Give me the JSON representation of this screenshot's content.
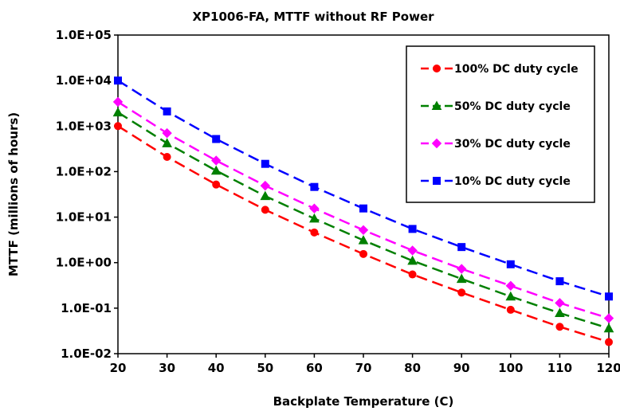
{
  "chart_data": {
    "type": "line",
    "title": "XP1006-FA, MTTF without RF Power",
    "xlabel": "Backplate Temperature (C)",
    "ylabel": "MTTF (millions of hours)",
    "xlim": [
      20,
      120
    ],
    "ylim": [
      0.01,
      100000
    ],
    "yscale": "log",
    "x": [
      20,
      30,
      40,
      50,
      60,
      70,
      80,
      90,
      100,
      110,
      120
    ],
    "x_tick_labels": [
      "20",
      "30",
      "40",
      "50",
      "60",
      "70",
      "80",
      "90",
      "100",
      "110",
      "120"
    ],
    "y_tick_values": [
      100000,
      10000,
      1000,
      100,
      10,
      1,
      0.1,
      0.01
    ],
    "y_tick_labels": [
      "1.0E+05",
      "1.0E+04",
      "1.0E+03",
      "1.0E+02",
      "1.0E+01",
      "1.0E+00",
      "1.0E-01",
      "1.0E-02"
    ],
    "grid": false,
    "legend_position": "top-right",
    "series": [
      {
        "name": "100% DC duty cycle",
        "color": "#ff0000",
        "marker": "circle",
        "values": [
          1000,
          210,
          52,
          14.5,
          4.6,
          1.55,
          0.55,
          0.22,
          0.092,
          0.039,
          0.018
        ]
      },
      {
        "name": "50% DC duty cycle",
        "color": "#008000",
        "marker": "triangle",
        "values": [
          2000,
          420,
          105,
          29,
          9.3,
          3.1,
          1.1,
          0.44,
          0.18,
          0.078,
          0.036
        ]
      },
      {
        "name": "30% DC duty cycle",
        "color": "#ff00ff",
        "marker": "diamond",
        "values": [
          3400,
          700,
          175,
          49,
          15.5,
          5.2,
          1.85,
          0.73,
          0.31,
          0.13,
          0.06
        ]
      },
      {
        "name": "10% DC duty cycle",
        "color": "#0000ff",
        "marker": "square",
        "values": [
          10000,
          2100,
          520,
          148,
          46,
          15.5,
          5.5,
          2.2,
          0.92,
          0.39,
          0.18
        ]
      }
    ]
  }
}
